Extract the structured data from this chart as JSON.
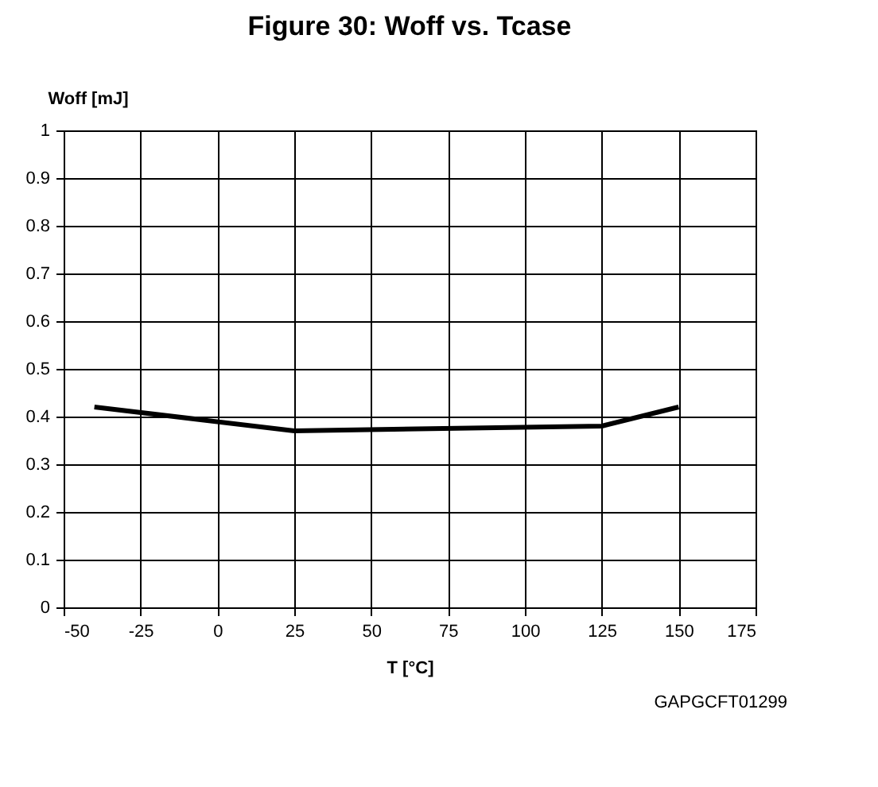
{
  "chart_data": {
    "type": "line",
    "title": "Figure 30: Woff vs. Tcase",
    "xlabel": "T [°C]",
    "ylabel": "Woff [mJ]",
    "x": [
      -40,
      25,
      125,
      150
    ],
    "series": [
      {
        "color": "#000000",
        "values": [
          0.42,
          0.37,
          0.38,
          0.42
        ]
      }
    ],
    "xlim": [
      -50,
      175
    ],
    "xticks": [
      -50,
      -25,
      0,
      25,
      50,
      75,
      100,
      125,
      150,
      175
    ],
    "ylim": [
      0,
      1
    ],
    "yticks": [
      0,
      0.1,
      0.2,
      0.3,
      0.4,
      0.5,
      0.6,
      0.7,
      0.8,
      0.9,
      1
    ],
    "grid": true,
    "marker": "none",
    "line_style": "solid",
    "annotations": [
      "GAPGCFT01299"
    ]
  }
}
